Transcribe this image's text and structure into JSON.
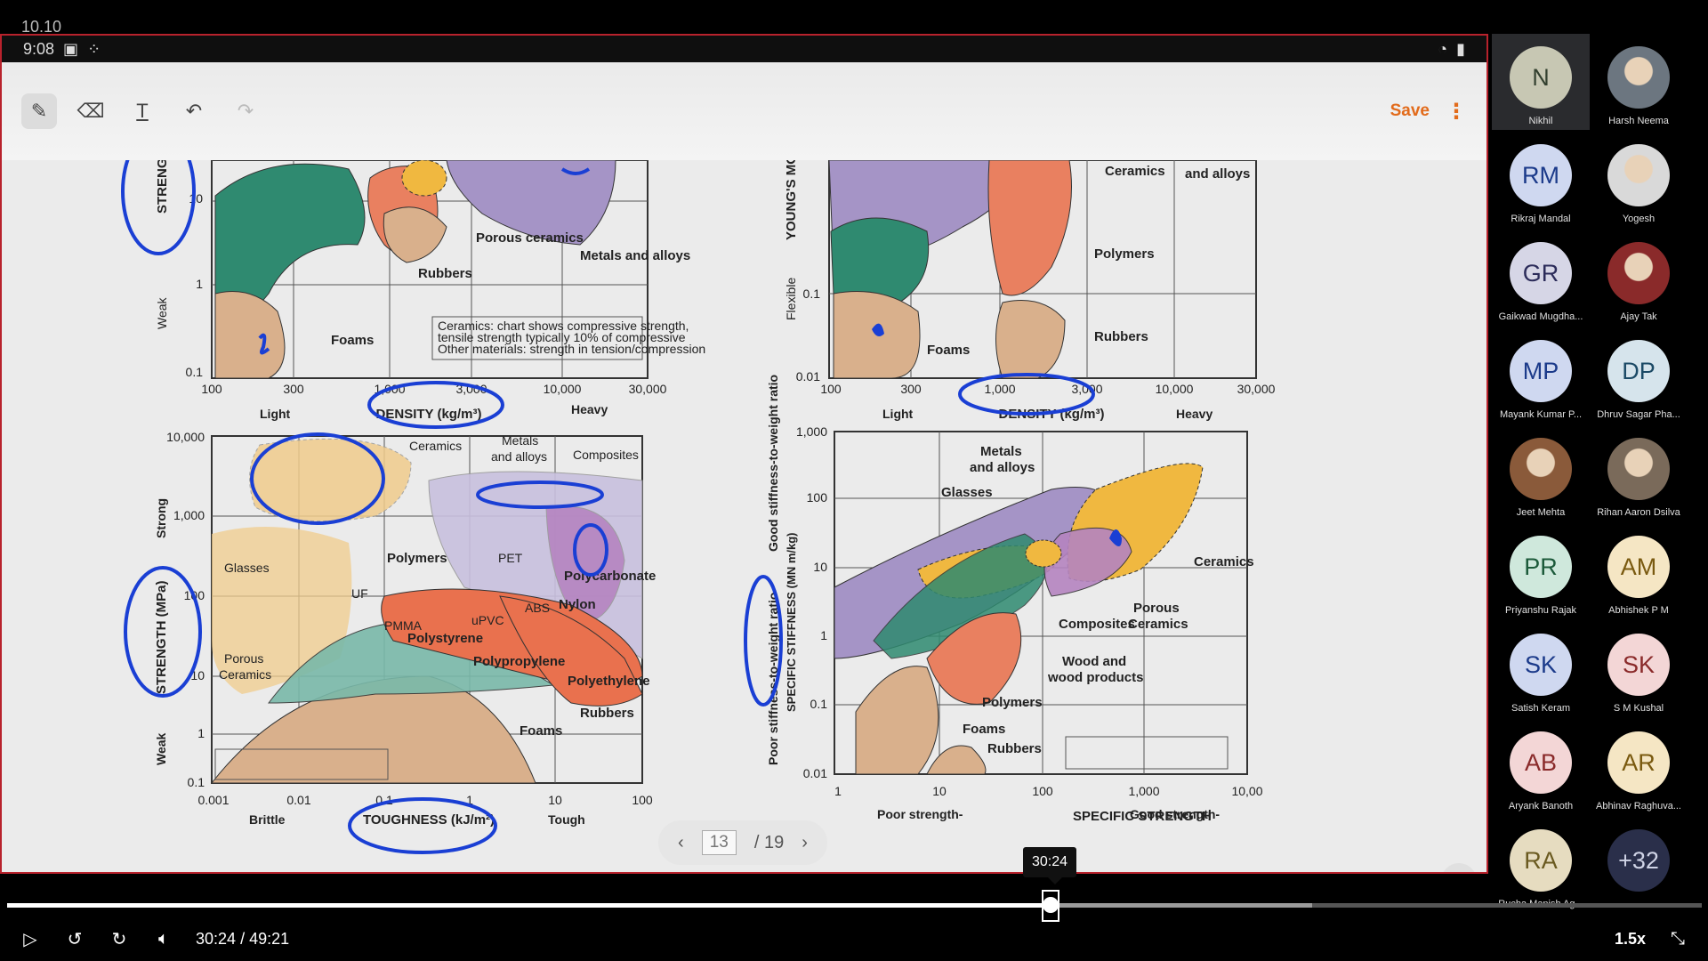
{
  "overlay_time": "10.10",
  "status": {
    "time": "9:08"
  },
  "toolbar": {
    "tools": [
      "pen-icon",
      "eraser-icon",
      "text-icon",
      "undo-icon",
      "redo-icon"
    ],
    "save_label": "Save"
  },
  "slide": {
    "top_left": {
      "y_ticks": [
        "10",
        "1",
        "0.1"
      ],
      "x_ticks": [
        "100",
        "300",
        "1,000",
        "3,000",
        "10,000",
        "30,000"
      ],
      "x_label": "DENSITY (kg/m³)",
      "y_label": "STRENG",
      "weak": "Weak",
      "light": "Light",
      "heavy": "Heavy",
      "materials": [
        "Porous ceramics",
        "Rubbers",
        "Metals and alloys",
        "Foams"
      ],
      "note_line1": "Ceramics: chart shows compressive strength,",
      "note_line2": "tensile strength typically 10% of compressive",
      "note_line3": "Other materials: strength in tension/compression"
    },
    "top_right": {
      "y_ticks": [
        "0.1",
        "0.01"
      ],
      "x_ticks": [
        "100",
        "300",
        "1,000",
        "3,000",
        "10,000",
        "30,000"
      ],
      "x_label": "DENSITY (kg/m³)",
      "y_label": "YOUNG'S MO",
      "flexible": "Flexible",
      "light": "Light",
      "heavy": "Heavy",
      "materials": [
        "Ceramics",
        "and alloys",
        "Polymers",
        "Rubbers",
        "Foams"
      ]
    },
    "bottom_left": {
      "y_ticks": [
        "10,000",
        "1,000",
        "100",
        "10",
        "1",
        "0.1"
      ],
      "x_ticks": [
        "0.001",
        "0.01",
        "0.1",
        "1",
        "10",
        "100"
      ],
      "x_label": "TOUGHNESS (kJ/m²)",
      "y_label": "STRENGTH (MPa)",
      "strong": "Strong",
      "weak": "Weak",
      "brittle": "Brittle",
      "tough": "Tough",
      "materials": [
        "Ceramics",
        "Metals",
        "and alloys",
        "Composites",
        "Glasses",
        "Polymers",
        "PET",
        "Polycarbonate",
        "UF",
        "ABS",
        "Nylon",
        "PMMA",
        "uPVC",
        "Polystyrene",
        "Polypropylene",
        "Polyethylene",
        "Porous",
        "Ceramics",
        "Rubbers",
        "Foams"
      ]
    },
    "bottom_right": {
      "y_ticks": [
        "1,000",
        "100",
        "10",
        "1",
        "0.1",
        "0.01"
      ],
      "x_ticks": [
        "1",
        "10",
        "100",
        "1,000",
        "10,00"
      ],
      "y_label": "SPECIFIC STIFFNESS (MN m/kg)",
      "good_stiff": "Good stiffness-to-weight ratio",
      "poor_stiff": "Poor stiffness-to-weight ratio",
      "x_label": "SPECIFIC STRENGTH",
      "poor_strength": "Poor strength-",
      "good_strength": "Good strength-",
      "materials": [
        "Metals",
        "and alloys",
        "Glasses",
        "Ceramics",
        "Porous",
        "Ceramics",
        "Composites",
        "Wood and",
        "wood products",
        "Polymers",
        "Foams",
        "Rubbers"
      ]
    }
  },
  "pager": {
    "current": "13",
    "total": "/ 19"
  },
  "player": {
    "tooltip": "30:24",
    "current": "30:24",
    "separator": "/",
    "duration": "49:21",
    "speed": "1.5x",
    "progress_fraction": 0.616,
    "buffered_fraction": 0.77
  },
  "participants": [
    {
      "initials": "N",
      "name": "Nikhil",
      "bg": "#c7c7b3",
      "fg": "#33402f"
    },
    {
      "initials": "",
      "name": "Harsh Neema",
      "bg": "#6c7680",
      "fg": "#fff",
      "photo": true
    },
    {
      "initials": "RM",
      "name": "Rikraj Mandal",
      "bg": "#cfd8f0",
      "fg": "#1b3a8a"
    },
    {
      "initials": "",
      "name": "Yogesh",
      "bg": "#d9d9d9",
      "fg": "#222",
      "photo": true
    },
    {
      "initials": "GR",
      "name": "Gaikwad Mugdha...",
      "bg": "#d6d6e6",
      "fg": "#2c2c5a"
    },
    {
      "initials": "",
      "name": "Ajay Tak",
      "bg": "#8a2a2a",
      "fg": "#fff",
      "photo": true
    },
    {
      "initials": "MP",
      "name": "Mayank Kumar P...",
      "bg": "#cfd8f0",
      "fg": "#1b3a8a"
    },
    {
      "initials": "DP",
      "name": "Dhruv Sagar Pha...",
      "bg": "#d6e4ec",
      "fg": "#1c4a66"
    },
    {
      "initials": "",
      "name": "Jeet Mehta",
      "bg": "#8a5a3a",
      "fg": "#fff",
      "photo": true
    },
    {
      "initials": "",
      "name": "Rihan Aaron Dsilva",
      "bg": "#7a6a5a",
      "fg": "#fff",
      "photo": true
    },
    {
      "initials": "PR",
      "name": "Priyanshu Rajak",
      "bg": "#cfe8dc",
      "fg": "#1c5a3a"
    },
    {
      "initials": "AM",
      "name": "Abhishek P M",
      "bg": "#f5e6c4",
      "fg": "#7a5a10"
    },
    {
      "initials": "SK",
      "name": "Satish Keram",
      "bg": "#cfd8f0",
      "fg": "#1b3a8a"
    },
    {
      "initials": "SK",
      "name": "S M Kushal",
      "bg": "#f3d6d6",
      "fg": "#8a2a2a"
    },
    {
      "initials": "AB",
      "name": "Aryank Banoth",
      "bg": "#f3d6d6",
      "fg": "#8a2a2a"
    },
    {
      "initials": "AR",
      "name": "Abhinav Raghuva...",
      "bg": "#f5e6c4",
      "fg": "#7a5a10"
    },
    {
      "initials": "RA",
      "name": "Rucha Manish Ag...",
      "bg": "#e6dcc0",
      "fg": "#6a5a20"
    },
    {
      "initials": "+32",
      "name": "",
      "bg": "#2a2f4a",
      "fg": "#d0d4e6"
    }
  ]
}
